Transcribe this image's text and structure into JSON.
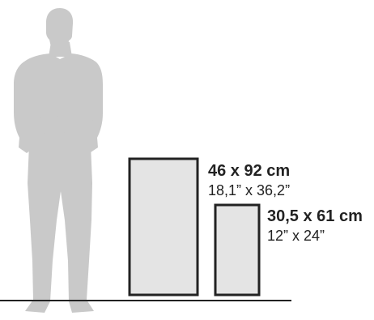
{
  "colors": {
    "silhouette": "#c9c9c9",
    "canvas_fill": "#e4e4e4",
    "canvas_border": "#222222",
    "floor_line": "#222222",
    "text": "#222222"
  },
  "large_canvas": {
    "metric": "46 x 92 cm",
    "imperial": "18,1” x 36,2”"
  },
  "small_canvas": {
    "metric": "30,5 x 61 cm",
    "imperial": "12” x 24”"
  }
}
